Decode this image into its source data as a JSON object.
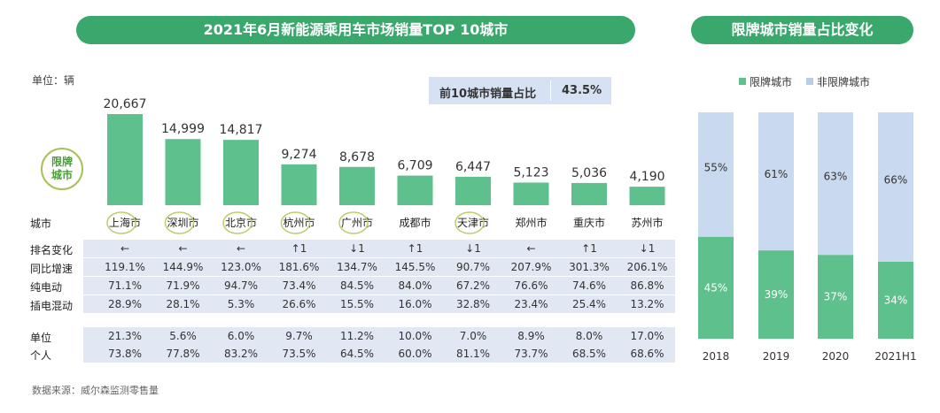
{
  "left_title": "2021年6月新能源乘用车市场销量TOP 10城市",
  "right_title": "限牌城市销量占比变化",
  "unit_label": "单位：辆",
  "share_label": "前10城市销量占比",
  "share_value": "43.5%",
  "badge_text": "限牌\n城市",
  "source": "数据来源：威尔森监测零售量",
  "row_labels": {
    "city": "城市",
    "rank": "排名变化",
    "yoy": "同比增速",
    "bev": "纯电动",
    "phev": "插电混动",
    "org": "单位",
    "personal": "个人"
  },
  "colors": {
    "green": "#5ec08d",
    "blue": "#c9d9f0",
    "band": "#e1e8f4",
    "accent": "#3aa86c"
  },
  "chart_data": [
    {
      "type": "bar",
      "categories": [
        "上海市",
        "深圳市",
        "北京市",
        "杭州市",
        "广州市",
        "成都市",
        "天津市",
        "郑州市",
        "重庆市",
        "苏州市"
      ],
      "values": [
        20667,
        14999,
        14817,
        9274,
        8678,
        6709,
        6447,
        5123,
        5036,
        4190
      ],
      "value_labels": [
        "20,667",
        "14,999",
        "14,817",
        "9,274",
        "8,678",
        "6,709",
        "6,447",
        "5,123",
        "5,036",
        "4,190"
      ],
      "restricted": [
        true,
        true,
        true,
        true,
        true,
        false,
        true,
        false,
        false,
        false
      ],
      "ylabel": "单位：辆",
      "table": {
        "rank": [
          "←",
          "←",
          "←",
          "↑1",
          "↓1",
          "↑1",
          "↓1",
          "←",
          "↑1",
          "↓1"
        ],
        "yoy": [
          "119.1%",
          "144.9%",
          "123.0%",
          "181.6%",
          "134.7%",
          "145.5%",
          "90.7%",
          "207.9%",
          "301.3%",
          "206.1%"
        ],
        "bev": [
          "71.1%",
          "71.9%",
          "94.7%",
          "73.4%",
          "84.5%",
          "84.0%",
          "67.2%",
          "76.6%",
          "74.6%",
          "86.8%"
        ],
        "phev": [
          "28.9%",
          "28.1%",
          "5.3%",
          "26.6%",
          "15.5%",
          "16.0%",
          "32.8%",
          "23.4%",
          "25.4%",
          "13.2%"
        ],
        "org": [
          "21.3%",
          "5.6%",
          "6.0%",
          "9.7%",
          "11.2%",
          "10.0%",
          "7.0%",
          "8.9%",
          "8.0%",
          "17.0%"
        ],
        "personal": [
          "73.8%",
          "77.8%",
          "83.2%",
          "73.5%",
          "64.5%",
          "60.0%",
          "81.1%",
          "73.7%",
          "68.5%",
          "68.6%"
        ]
      }
    },
    {
      "type": "bar",
      "stacked": true,
      "categories": [
        "2018",
        "2019",
        "2020",
        "2021H1"
      ],
      "series": [
        {
          "name": "限牌城市",
          "values": [
            45,
            39,
            37,
            34
          ],
          "labels": [
            "45%",
            "39%",
            "37%",
            "34%"
          ]
        },
        {
          "name": "非限牌城市",
          "values": [
            55,
            61,
            63,
            66
          ],
          "labels": [
            "55%",
            "61%",
            "63%",
            "66%"
          ]
        }
      ],
      "ylim": [
        0,
        100
      ],
      "legend": "top"
    }
  ]
}
